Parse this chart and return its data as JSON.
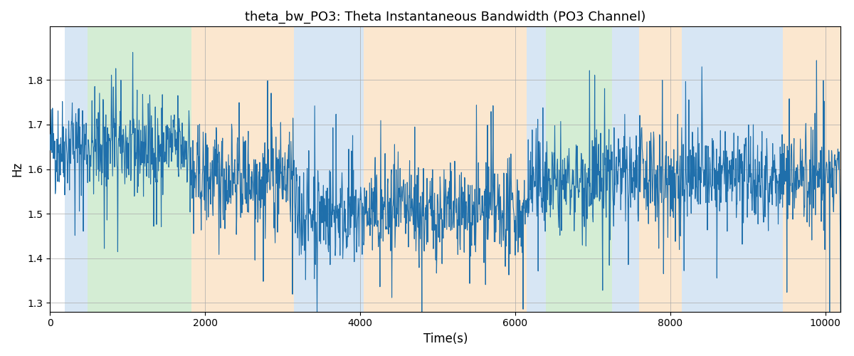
{
  "title": "theta_bw_PO3: Theta Instantaneous Bandwidth (PO3 Channel)",
  "xlabel": "Time(s)",
  "ylabel": "Hz",
  "xlim": [
    0,
    10200
  ],
  "ylim": [
    1.28,
    1.92
  ],
  "yticks": [
    1.3,
    1.4,
    1.5,
    1.6,
    1.7,
    1.8
  ],
  "xticks": [
    0,
    2000,
    4000,
    6000,
    8000,
    10000
  ],
  "line_color": "#1f6fab",
  "line_width": 0.8,
  "bg_color": "#ffffff",
  "grid_color": "#aaaaaa",
  "bands": [
    {
      "start": 190,
      "end": 480,
      "color": "#a8c8e8",
      "alpha": 0.45
    },
    {
      "start": 480,
      "end": 1820,
      "color": "#a0d8a0",
      "alpha": 0.45
    },
    {
      "start": 1820,
      "end": 3150,
      "color": "#f8d0a0",
      "alpha": 0.5
    },
    {
      "start": 3150,
      "end": 3600,
      "color": "#a8c8e8",
      "alpha": 0.45
    },
    {
      "start": 3600,
      "end": 4050,
      "color": "#a8c8e8",
      "alpha": 0.45
    },
    {
      "start": 4050,
      "end": 6150,
      "color": "#f8d0a0",
      "alpha": 0.5
    },
    {
      "start": 6150,
      "end": 6400,
      "color": "#a8c8e8",
      "alpha": 0.45
    },
    {
      "start": 6400,
      "end": 7250,
      "color": "#a0d8a0",
      "alpha": 0.45
    },
    {
      "start": 7250,
      "end": 7600,
      "color": "#a8c8e8",
      "alpha": 0.45
    },
    {
      "start": 7600,
      "end": 8150,
      "color": "#f8d0a0",
      "alpha": 0.5
    },
    {
      "start": 8150,
      "end": 8650,
      "color": "#a8c8e8",
      "alpha": 0.45
    },
    {
      "start": 8650,
      "end": 9450,
      "color": "#a8c8e8",
      "alpha": 0.45
    },
    {
      "start": 9450,
      "end": 10200,
      "color": "#f8d0a0",
      "alpha": 0.5
    }
  ],
  "seed": 42,
  "n_points": 2000,
  "t_max": 10200,
  "signal_params": {
    "noise_std": 0.055,
    "spike_prob": 0.035,
    "spike_magnitude": 0.12,
    "trend_segments": [
      {
        "start": 0,
        "end": 1820,
        "mean": 1.65
      },
      {
        "start": 1820,
        "end": 3150,
        "mean": 1.58
      },
      {
        "start": 3150,
        "end": 6150,
        "mean": 1.5
      },
      {
        "start": 6150,
        "end": 7250,
        "mean": 1.57
      },
      {
        "start": 7250,
        "end": 10200,
        "mean": 1.58
      }
    ]
  },
  "figsize": [
    12,
    5
  ],
  "dpi": 100
}
